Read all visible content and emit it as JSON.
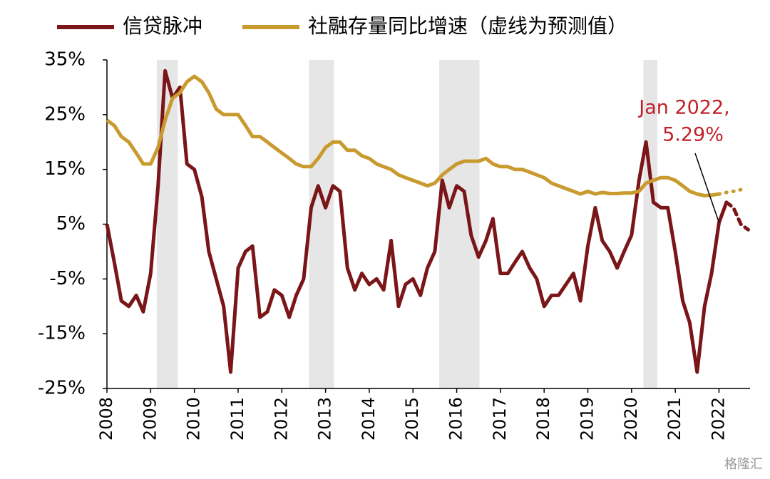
{
  "chart_data": {
    "type": "line",
    "x": [
      2008,
      2008.17,
      2008.33,
      2008.5,
      2008.67,
      2008.83,
      2009,
      2009.17,
      2009.33,
      2009.5,
      2009.67,
      2009.83,
      2010,
      2010.17,
      2010.33,
      2010.5,
      2010.67,
      2010.83,
      2011,
      2011.17,
      2011.33,
      2011.5,
      2011.67,
      2011.83,
      2012,
      2012.17,
      2012.33,
      2012.5,
      2012.67,
      2012.83,
      2013,
      2013.17,
      2013.33,
      2013.5,
      2013.67,
      2013.83,
      2014,
      2014.17,
      2014.33,
      2014.5,
      2014.67,
      2014.83,
      2015,
      2015.17,
      2015.33,
      2015.5,
      2015.67,
      2015.83,
      2016,
      2016.17,
      2016.33,
      2016.5,
      2016.67,
      2016.83,
      2017,
      2017.17,
      2017.33,
      2017.5,
      2017.67,
      2017.83,
      2018,
      2018.17,
      2018.33,
      2018.5,
      2018.67,
      2018.83,
      2019,
      2019.17,
      2019.33,
      2019.5,
      2019.67,
      2019.83,
      2020,
      2020.17,
      2020.33,
      2020.5,
      2020.67,
      2020.83,
      2021,
      2021.17,
      2021.33,
      2021.5,
      2021.67,
      2021.83,
      2022,
      2022.17
    ],
    "series": [
      {
        "name": "信贷脉冲",
        "color": "#7a1518",
        "values": [
          5,
          -2,
          -9,
          -10,
          -8,
          -11,
          -4,
          12,
          33,
          28,
          30,
          16,
          15,
          10,
          0,
          -5,
          -10,
          -22,
          -3,
          0,
          1,
          -12,
          -11,
          -7,
          -8,
          -12,
          -8,
          -5,
          8,
          12,
          8,
          12,
          11,
          -3,
          -7,
          -4,
          -6,
          -5,
          -7,
          2,
          -10,
          -6,
          -5,
          -8,
          -3,
          0,
          13,
          8,
          12,
          11,
          3,
          -1,
          2,
          6,
          -4,
          -4,
          -2,
          0,
          -3,
          -5,
          -10,
          -8,
          -8,
          -6,
          -4,
          -9,
          1,
          8,
          2,
          0,
          -3,
          0,
          3,
          13,
          20,
          9,
          8,
          8,
          0,
          -9,
          -13,
          -22,
          -10,
          -4,
          5.29,
          9
        ],
        "forecast": {
          "x": [
            2022.17,
            2022.33,
            2022.5,
            2022.67
          ],
          "values": [
            9,
            8,
            5,
            4
          ]
        }
      },
      {
        "name": "社融存量同比增速（虚线为预测值）",
        "color": "#c99a2e",
        "values": [
          24,
          23,
          21,
          20,
          18,
          16,
          16,
          19,
          24,
          28,
          29,
          31,
          32,
          31,
          29,
          26,
          25,
          25,
          25,
          23,
          21,
          21,
          20,
          19,
          18,
          17,
          16,
          15.5,
          15.5,
          17,
          19,
          20,
          20,
          18.5,
          18.5,
          17.5,
          17,
          16,
          15.5,
          15,
          14,
          13.5,
          13,
          12.5,
          12,
          12.5,
          14,
          15,
          16,
          16.5,
          16.5,
          16.5,
          17,
          16,
          15.5,
          15.5,
          15,
          15,
          14.5,
          14,
          13.5,
          12.5,
          12,
          11.5,
          11,
          10.5,
          11,
          10.5,
          10.8,
          10.6,
          10.6,
          10.7,
          10.7,
          11,
          12.5,
          13,
          13.5,
          13.5,
          13,
          12,
          11,
          10.5,
          10.2,
          10.3,
          10.5,
          null
        ],
        "forecast": {
          "x": [
            2022,
            2022.17,
            2022.33,
            2022.5
          ],
          "values": [
            10.5,
            10.8,
            11,
            11.3
          ]
        }
      }
    ],
    "xlim": [
      2008,
      2022.71
    ],
    "xticks": [
      2008,
      2009,
      2010,
      2011,
      2012,
      2013,
      2014,
      2015,
      2016,
      2017,
      2018,
      2019,
      2020,
      2021,
      2022
    ],
    "ylim": [
      -25,
      35
    ],
    "yticks": [
      {
        "value": -25,
        "label": "-25%"
      },
      {
        "value": -15,
        "label": "-15%"
      },
      {
        "value": -5,
        "label": "-5%"
      },
      {
        "value": 5,
        "label": "5%"
      },
      {
        "value": 15,
        "label": "15%"
      },
      {
        "value": 25,
        "label": "25%"
      },
      {
        "value": 35,
        "label": "35%"
      }
    ],
    "shaded": [
      [
        2009.14,
        2009.62
      ],
      [
        2012.62,
        2013.19
      ],
      [
        2015.6,
        2016.52
      ],
      [
        2020.27,
        2020.59
      ]
    ],
    "shade_color": "#e6e6e6",
    "annotation": {
      "text": [
        "Jan 2022,",
        "5.29%"
      ],
      "x": 2022,
      "y": 5.29,
      "color": "#c0202a"
    },
    "watermark": "格隆汇"
  }
}
